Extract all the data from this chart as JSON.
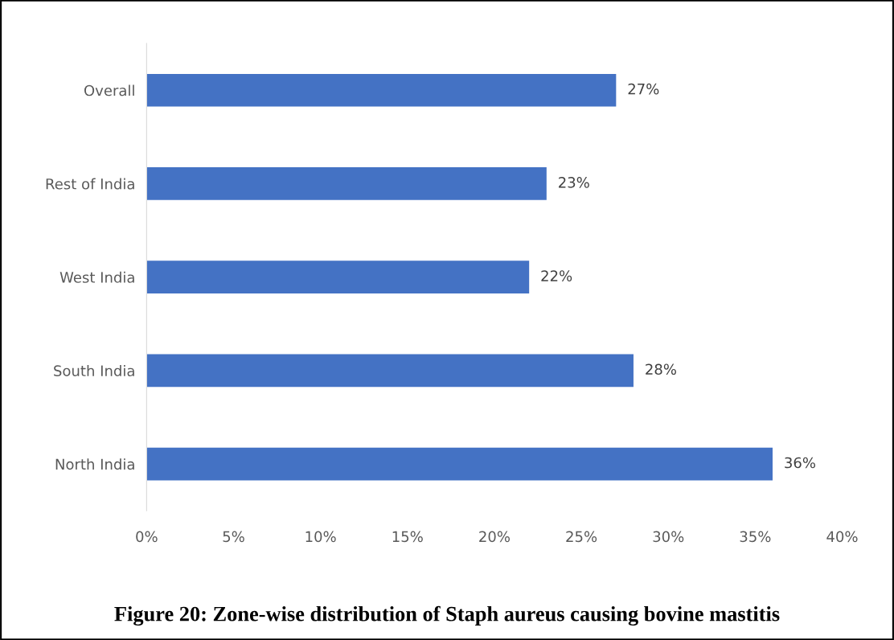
{
  "chart_data": {
    "type": "bar",
    "orientation": "horizontal",
    "title": "Figure 20: Zone-wise distribution of Staph aureus causing bovine mastitis",
    "categories": [
      "Overall",
      "Rest of India",
      "West India",
      "South India",
      "North India"
    ],
    "values": [
      27,
      23,
      22,
      28,
      36
    ],
    "value_labels": [
      "27%",
      "23%",
      "22%",
      "28%",
      "36%"
    ],
    "color": "#4472c4",
    "xlim": [
      0,
      40
    ],
    "xticks": [
      {
        "value": 0,
        "label": "0%"
      },
      {
        "value": 5,
        "label": "5%"
      },
      {
        "value": 10,
        "label": "10%"
      },
      {
        "value": 15,
        "label": "15%"
      },
      {
        "value": 20,
        "label": "20%"
      },
      {
        "value": 25,
        "label": "25%"
      },
      {
        "value": 30,
        "label": "30%"
      },
      {
        "value": 35,
        "label": "35%"
      },
      {
        "value": 40,
        "label": "40%"
      }
    ],
    "grid": false,
    "legend": false
  }
}
